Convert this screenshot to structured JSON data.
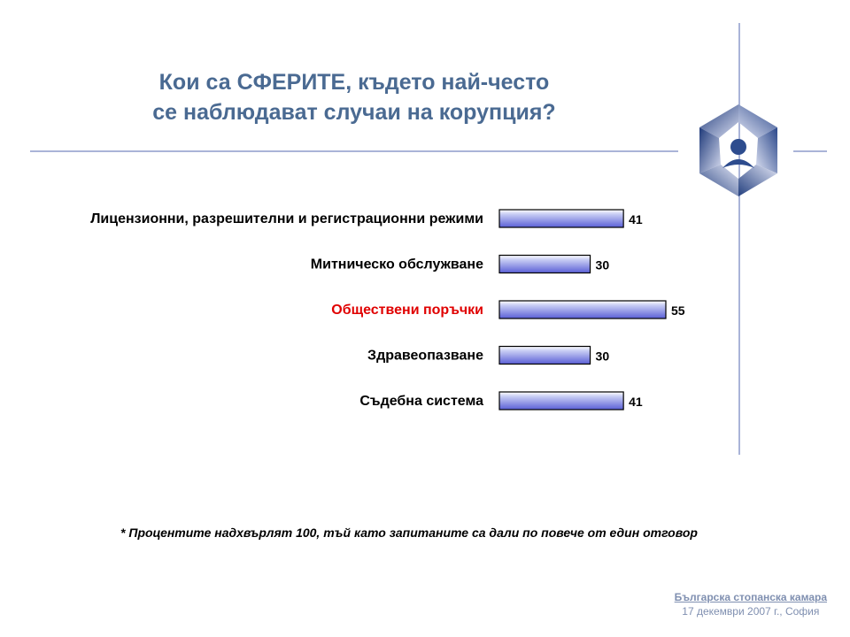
{
  "slide": {
    "title_line1": "Кои са СФЕРИТЕ, където най-често",
    "title_line2": "се наблюдават случаи на корупция?",
    "footnote": "* Процентите надхвърлят 100, тъй като запитаните са дали по повече от един отговор",
    "org_name": "Българска стопанска камара",
    "date": "17 декември 2007 г., София"
  },
  "colors": {
    "title": "#4a6a92",
    "bar_light": "#c8cdf4",
    "bar_dark": "#5a5fd6",
    "highlight_label": "#e00000",
    "normal_label": "#000000",
    "rule": "#aab4d8"
  },
  "chart_data": {
    "type": "bar",
    "orientation": "horizontal",
    "categories": [
      "Лицензионни, разрешителни и регистрационни режими",
      "Митническо обслужване",
      "Обществени поръчки",
      "Здравеопазване",
      "Съдебна система"
    ],
    "values": [
      41,
      30,
      55,
      30,
      41
    ],
    "highlighted_category": "Обществени поръчки",
    "xlim": [
      0,
      55
    ],
    "grid": false,
    "legend": "none"
  }
}
